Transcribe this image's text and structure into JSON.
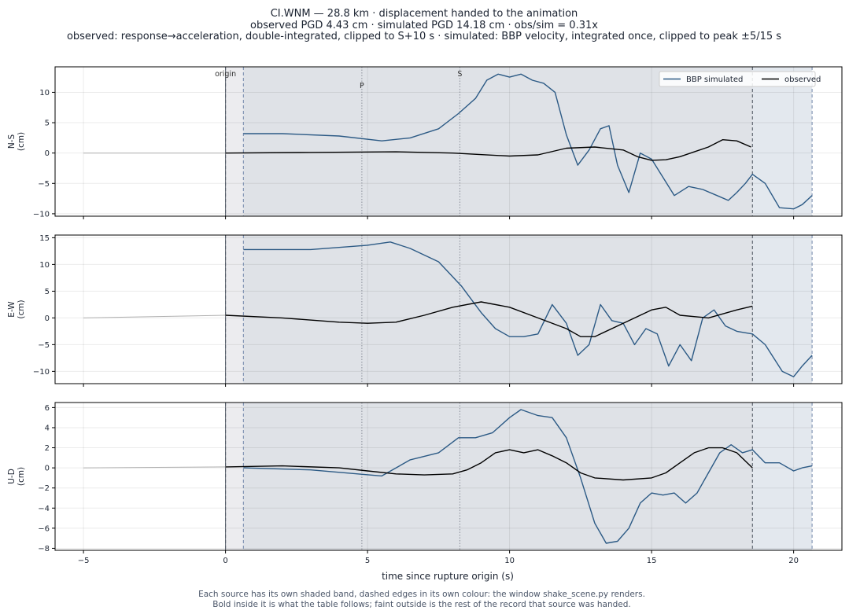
{
  "header": {
    "title_line1": "CI.WNM  —  28.8 km   ·   displacement handed to the animation",
    "title_line2": "observed PGD 4.43 cm   ·   simulated PGD 14.18 cm   ·   obs/sim = 0.31x",
    "title_line3": "observed: response→acceleration, double-integrated, clipped to S+10 s   ·   simulated: BBP velocity, integrated once, clipped to peak ±5/15 s"
  },
  "footer": {
    "line1": "Each source has its own shaded band, dashed edges in its own colour: the window shake_scene.py renders.",
    "line2": "Bold inside it is what the table follows;   faint outside is the rest of the record that source was handed."
  },
  "colors": {
    "simulated": "#2c5a85",
    "observed": "#000000",
    "faint": "#b0b0b0",
    "sim_band": "#e3e8ee",
    "obs_band": "#dcdde2",
    "obs_band_edge": "#555c68",
    "sim_band_edge": "#7b8fb0"
  },
  "chart_data": {
    "type": "line",
    "xlabel": "time since rupture origin (s)",
    "xlim": [
      -6,
      21.7
    ],
    "xticks": [
      -5,
      0,
      5,
      10,
      15,
      20
    ],
    "xtick_labels": [
      "−5",
      "0",
      "5",
      "10",
      "15",
      "20"
    ],
    "phase_markers": [
      {
        "label": "origin",
        "t": 0
      },
      {
        "label": "P",
        "t": 4.8
      },
      {
        "label": "S",
        "t": 8.25
      }
    ],
    "windows": {
      "observed": [
        0,
        18.55
      ],
      "simulated": [
        0.63,
        20.65
      ]
    },
    "legend": {
      "placement": "top-right",
      "entries": [
        "BBP simulated",
        "observed"
      ]
    },
    "panels": [
      {
        "ylabel": "N-S\n(cm)",
        "ylim": [
          -10.4,
          14.2
        ],
        "yticks": [
          -10,
          -5,
          0,
          5,
          10
        ],
        "ytick_labels": [
          "−10",
          "−5",
          "0",
          "5",
          "10"
        ],
        "series": [
          {
            "name": "observed",
            "x": [
              -5,
              0,
              3,
              6,
              8,
              10,
              11,
              12,
              13,
              14,
              14.5,
              15,
              15.5,
              16,
              17,
              17.5,
              18,
              18.5
            ],
            "y": [
              0,
              0,
              0.1,
              0.2,
              0,
              -0.5,
              -0.3,
              0.8,
              1,
              0.5,
              -0.6,
              -1.2,
              -1.1,
              -0.6,
              1,
              2.2,
              2,
              1
            ]
          },
          {
            "name": "BBP simulated",
            "x": [
              0.63,
              2,
              4,
              5.5,
              6.5,
              7.5,
              8.2,
              8.8,
              9.2,
              9.6,
              10,
              10.4,
              10.8,
              11.2,
              11.6,
              12,
              12.4,
              12.8,
              13.2,
              13.5,
              13.8,
              14.2,
              14.6,
              15,
              15.4,
              15.8,
              16.3,
              16.8,
              17.3,
              17.7,
              18,
              18.3,
              18.55,
              19,
              19.5,
              20,
              20.3,
              20.65
            ],
            "y": [
              3.2,
              3.2,
              2.8,
              2.0,
              2.5,
              4.0,
              6.5,
              9.0,
              12.0,
              13.0,
              12.5,
              13.0,
              12.0,
              11.5,
              10.0,
              3.0,
              -2.0,
              0.5,
              4.0,
              4.5,
              -2.0,
              -6.5,
              0.0,
              -1.0,
              -4.0,
              -7.0,
              -5.5,
              -6.0,
              -7.0,
              -7.8,
              -6.5,
              -5.0,
              -3.5,
              -5.0,
              -9.0,
              -9.2,
              -8.5,
              -7.0
            ]
          }
        ]
      },
      {
        "ylabel": "E-W\n(cm)",
        "ylim": [
          -12.3,
          15.5
        ],
        "yticks": [
          -10,
          -5,
          0,
          5,
          10,
          15
        ],
        "ytick_labels": [
          "−10",
          "−5",
          "0",
          "5",
          "10",
          "15"
        ],
        "series": [
          {
            "name": "observed",
            "x": [
              -5,
              0,
              2,
              4,
              5,
              6,
              7,
              8,
              9,
              10,
              11,
              12,
              12.5,
              13,
              14,
              15,
              15.5,
              16,
              17,
              18,
              18.55
            ],
            "y": [
              0,
              0.5,
              0,
              -0.8,
              -1,
              -0.8,
              0.5,
              2,
              3,
              2,
              0,
              -2,
              -3.5,
              -3.5,
              -1,
              1.5,
              2,
              0.5,
              0,
              1.5,
              2.2
            ]
          },
          {
            "name": "BBP simulated",
            "x": [
              0.63,
              3,
              5,
              5.8,
              6.5,
              7.5,
              8.3,
              9,
              9.5,
              10,
              10.5,
              11,
              11.5,
              12,
              12.4,
              12.8,
              13.2,
              13.6,
              14,
              14.4,
              14.8,
              15.2,
              15.6,
              16,
              16.4,
              16.8,
              17.2,
              17.6,
              18,
              18.55,
              19,
              19.6,
              20,
              20.3,
              20.65
            ],
            "y": [
              12.8,
              12.8,
              13.6,
              14.2,
              13.0,
              10.5,
              6.0,
              1.0,
              -2.0,
              -3.5,
              -3.5,
              -3.0,
              2.5,
              -1.0,
              -7.0,
              -5.0,
              2.5,
              -0.5,
              -1.0,
              -5.0,
              -2.0,
              -3.0,
              -9.0,
              -5.0,
              -8.0,
              0.0,
              1.5,
              -1.5,
              -2.5,
              -3.0,
              -5.0,
              -10.0,
              -11.0,
              -9.0,
              -7.0
            ]
          }
        ]
      },
      {
        "ylabel": "U-D\n(cm)",
        "ylim": [
          -8.2,
          6.5
        ],
        "yticks": [
          -8,
          -6,
          -4,
          -2,
          0,
          2,
          4,
          6
        ],
        "ytick_labels": [
          "−8",
          "−6",
          "−4",
          "−2",
          "0",
          "2",
          "4",
          "6"
        ],
        "series": [
          {
            "name": "observed",
            "x": [
              -5,
              0,
              2,
              4,
              5,
              6,
              7,
              8,
              8.5,
              9,
              9.5,
              10,
              10.5,
              11,
              11.5,
              12,
              12.5,
              13,
              14,
              15,
              15.5,
              16,
              16.5,
              17,
              17.5,
              18,
              18.55
            ],
            "y": [
              0,
              0.1,
              0.2,
              0,
              -0.3,
              -0.6,
              -0.7,
              -0.6,
              -0.2,
              0.5,
              1.5,
              1.8,
              1.5,
              1.8,
              1.2,
              0.5,
              -0.5,
              -1,
              -1.2,
              -1,
              -0.5,
              0.5,
              1.5,
              2,
              2,
              1.5,
              0
            ]
          },
          {
            "name": "BBP simulated",
            "x": [
              0.63,
              3,
              5.5,
              6.5,
              7.5,
              8.2,
              8.8,
              9.4,
              10,
              10.4,
              11,
              11.5,
              12,
              12.5,
              13,
              13.4,
              13.8,
              14.2,
              14.6,
              15,
              15.4,
              15.8,
              16.2,
              16.6,
              17,
              17.4,
              17.8,
              18.2,
              18.55,
              19,
              19.5,
              20,
              20.3,
              20.65
            ],
            "y": [
              0,
              -0.2,
              -0.8,
              0.8,
              1.5,
              3.0,
              3.0,
              3.5,
              5.0,
              5.8,
              5.2,
              5.0,
              3.0,
              -1.0,
              -5.5,
              -7.5,
              -7.3,
              -6.0,
              -3.5,
              -2.5,
              -2.7,
              -2.5,
              -3.5,
              -2.5,
              -0.5,
              1.5,
              2.3,
              1.5,
              1.8,
              0.5,
              0.5,
              -0.3,
              0.0,
              0.2
            ]
          }
        ]
      }
    ]
  }
}
